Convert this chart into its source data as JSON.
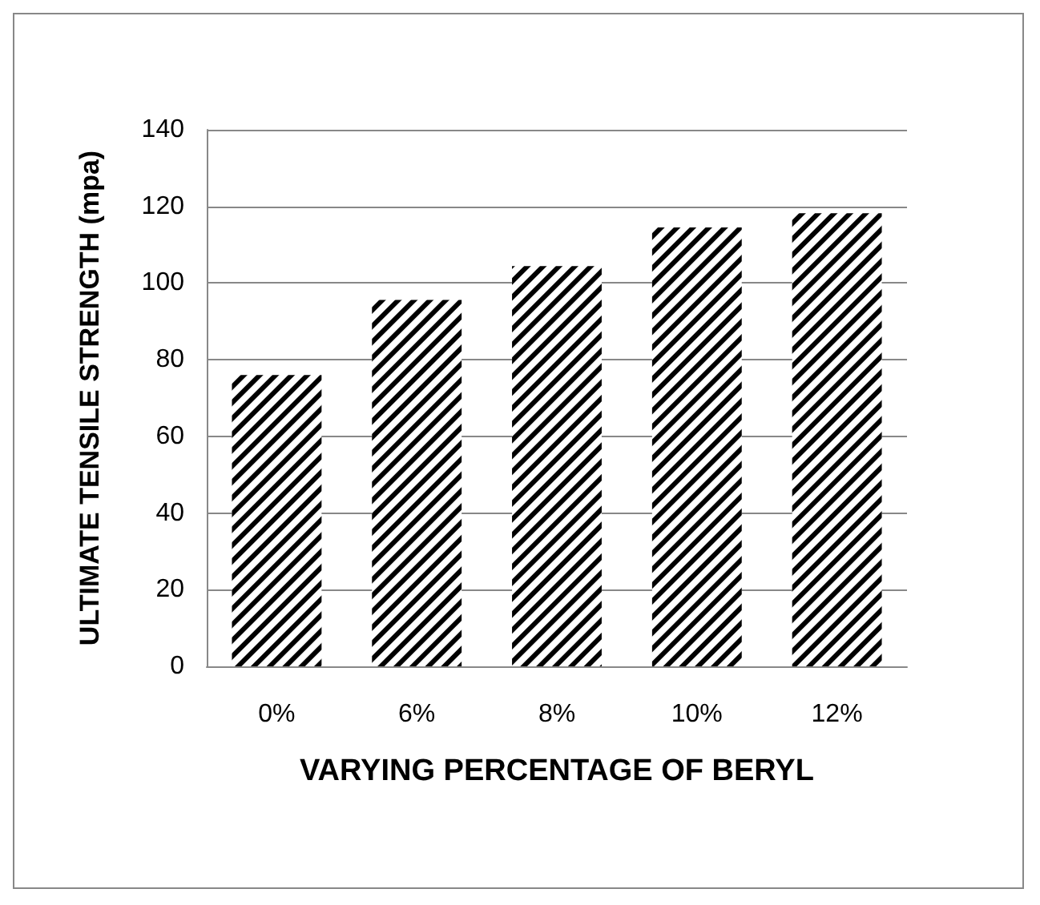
{
  "chart_data": {
    "type": "bar",
    "xlabel": "VARYING PERCENTAGE OF BERYL",
    "ylabel": "ULTIMATE TENSILE STRENGTH (mpa)",
    "categories": [
      "0%",
      "6%",
      "8%",
      "10%",
      "12%"
    ],
    "values": [
      76,
      95.6,
      104.4,
      114.5,
      118.2
    ],
    "color": "#000000",
    "ylim": [
      0,
      140
    ],
    "yticks": [
      0,
      20,
      40,
      60,
      80,
      100,
      120,
      140
    ],
    "grid": "y"
  }
}
